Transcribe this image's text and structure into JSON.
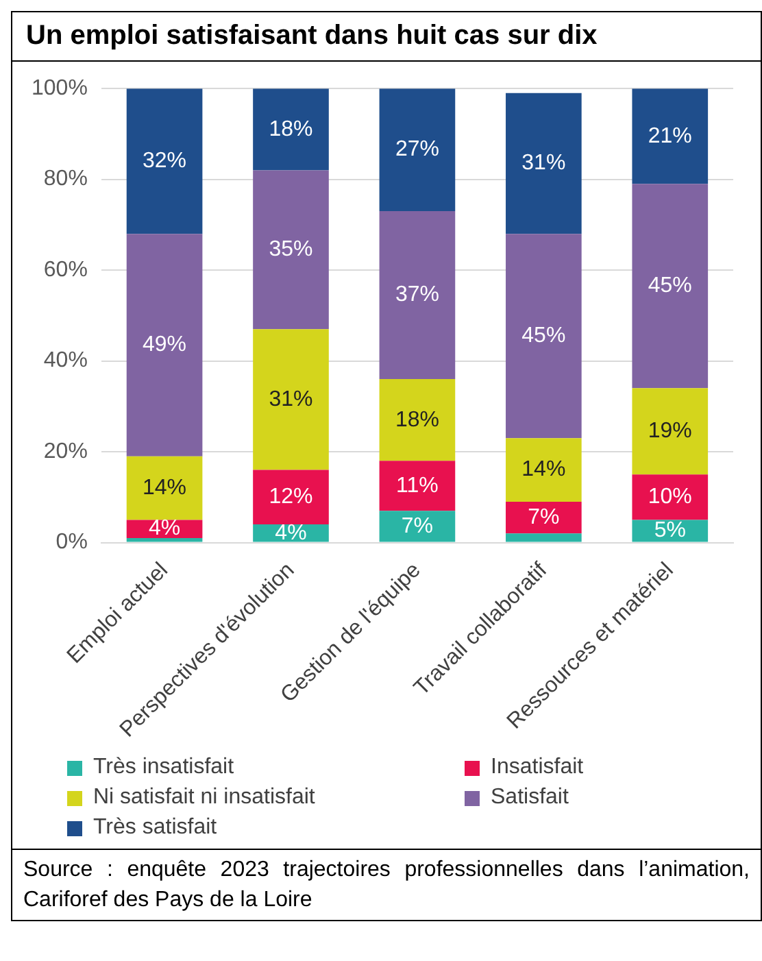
{
  "chart_data": {
    "type": "bar",
    "stacked": true,
    "title": "Un emploi satisfaisant dans huit cas sur dix",
    "categories": [
      "Emploi actuel",
      "Perspectives d'évolution",
      "Gestion de l'équipe",
      "Travail collaboratif",
      "Ressources et matériel"
    ],
    "series": [
      {
        "name": "Très insatisfait",
        "color": "#2ab5a5",
        "values": [
          1,
          4,
          7,
          2,
          5
        ],
        "value_labels": [
          null,
          "4%",
          "7%",
          null,
          "5%"
        ]
      },
      {
        "name": "Insatisfait",
        "color": "#e8114f",
        "values": [
          4,
          12,
          11,
          7,
          10
        ],
        "value_labels": [
          "4%",
          "12%",
          "11%",
          "7%",
          "10%"
        ]
      },
      {
        "name": "Ni satisfait ni insatisfait",
        "color": "#d4d51c",
        "values": [
          14,
          31,
          18,
          14,
          19
        ],
        "value_labels": [
          "14%",
          "31%",
          "18%",
          "14%",
          "19%"
        ]
      },
      {
        "name": "Satisfait",
        "color": "#8064a2",
        "values": [
          49,
          35,
          37,
          45,
          45
        ],
        "value_labels": [
          "49%",
          "35%",
          "37%",
          "45%",
          "45%"
        ]
      },
      {
        "name": "Très satisfait",
        "color": "#1f4e8c",
        "values": [
          32,
          18,
          27,
          31,
          21
        ],
        "value_labels": [
          "32%",
          "18%",
          "27%",
          "31%",
          "21%"
        ]
      }
    ],
    "ylim": [
      0,
      100
    ],
    "yticks": [
      {
        "value": 0,
        "label": "0%"
      },
      {
        "value": 20,
        "label": "20%"
      },
      {
        "value": 40,
        "label": "40%"
      },
      {
        "value": 60,
        "label": "60%"
      },
      {
        "value": 80,
        "label": "80%"
      },
      {
        "value": 100,
        "label": "100%"
      }
    ],
    "grid": "y",
    "legend": "bottom",
    "annotations": [
      "Source : enquête 2023 trajectoires professionnelles dans l’animation, Cariforef des Pays de la Loire"
    ]
  }
}
